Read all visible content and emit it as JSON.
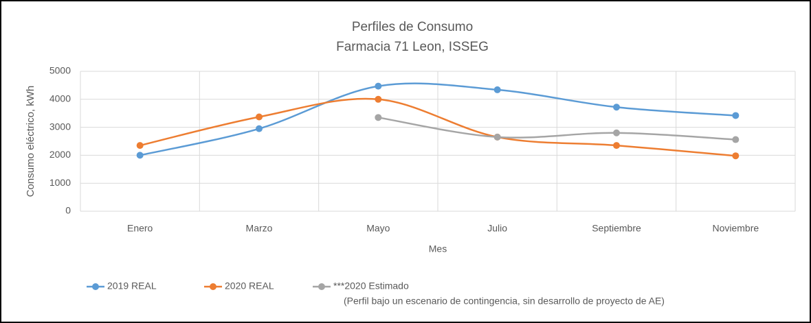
{
  "chart_data": {
    "type": "line",
    "title": "Perfiles de Consumo",
    "subtitle": "Farmacia 71 Leon, ISSEG",
    "x_label": "Mes",
    "y_label": "Consumo eléctrico, kWh",
    "categories": [
      "Enero",
      "Marzo",
      "Mayo",
      "Julio",
      "Septiembre",
      "Noviembre"
    ],
    "series": [
      {
        "name": "2019 REAL",
        "color": "#5b9bd5",
        "values": [
          2000,
          2950,
          4470,
          4340,
          3720,
          3420
        ]
      },
      {
        "name": "2020 REAL",
        "color": "#ed7d31",
        "values": [
          2350,
          3370,
          4000,
          2650,
          2350,
          1980
        ]
      },
      {
        "name": "***2020 Estimado",
        "color": "#a5a5a5",
        "values": [
          null,
          null,
          3350,
          2650,
          2800,
          2560
        ]
      }
    ],
    "legend_note": "(Perfil bajo un escenario de contingencia, sin desarrollo de proyecto de AE)",
    "ylim": [
      0,
      5000
    ],
    "yticks": [
      0,
      1000,
      2000,
      3000,
      4000,
      5000
    ],
    "grid": true,
    "smooth": true,
    "legend": "bottom"
  }
}
